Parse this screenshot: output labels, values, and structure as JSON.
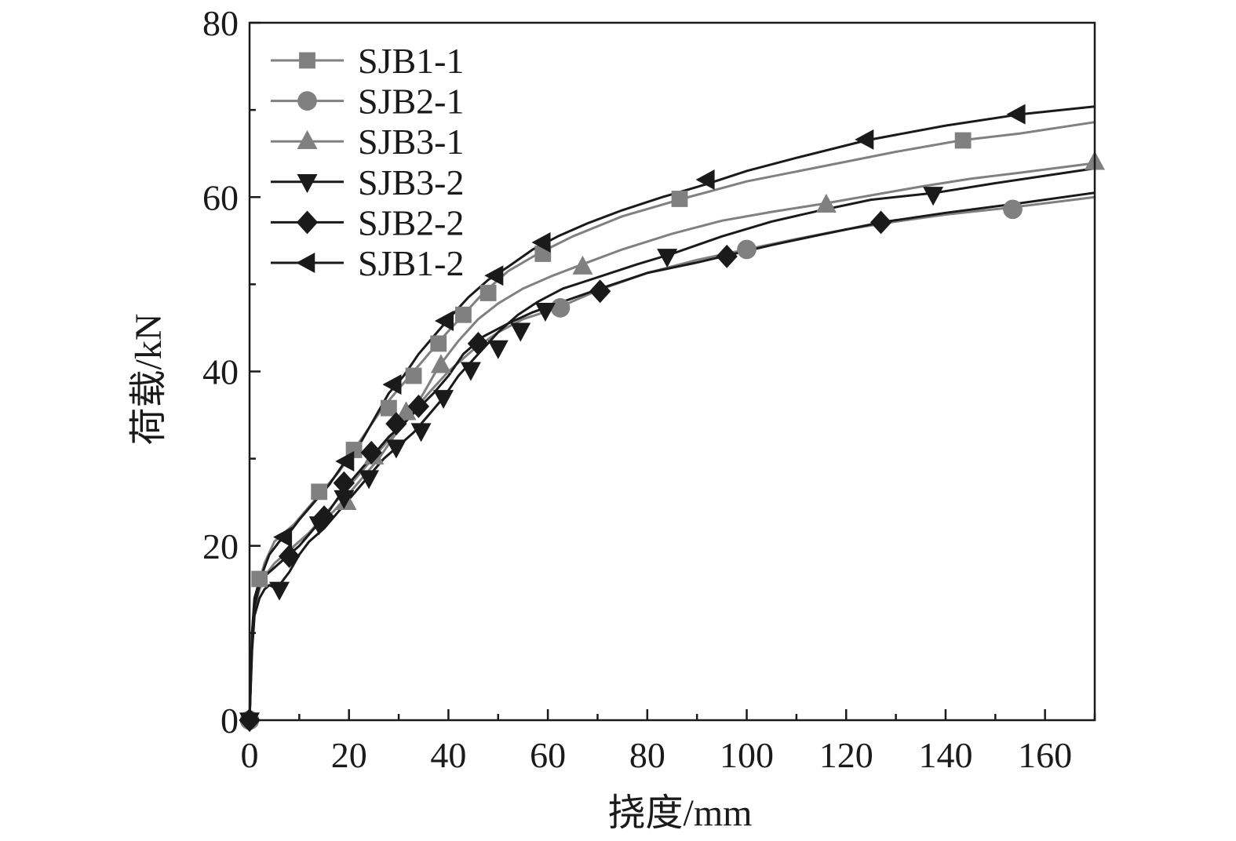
{
  "chart_data": {
    "type": "line",
    "title": "",
    "xlabel": "挠度/mm",
    "ylabel": "荷载/kN",
    "xlim": [
      0,
      170
    ],
    "ylim": [
      0,
      80
    ],
    "xticks": [
      0,
      20,
      40,
      60,
      80,
      100,
      120,
      140,
      160
    ],
    "yticks": [
      0,
      20,
      40,
      60,
      80
    ],
    "grid": false,
    "legend": "top-left",
    "series": [
      {
        "name": "SJB1-1",
        "color": "#808080",
        "marker": "square",
        "x": [
          0,
          0.5,
          1,
          2,
          3,
          5,
          7,
          9,
          12,
          15,
          18,
          21,
          24,
          27,
          30,
          33,
          36,
          39,
          43,
          47,
          52,
          58,
          65,
          75,
          87,
          100,
          115,
          130,
          143,
          155,
          170
        ],
        "y": [
          0,
          10,
          14,
          16,
          18,
          20.5,
          21.5,
          22.5,
          24.5,
          26.5,
          28.5,
          31,
          33.5,
          36,
          38,
          40,
          42,
          44,
          46.5,
          49,
          51.5,
          53.5,
          55.5,
          57.8,
          59.8,
          61.8,
          63.5,
          65.2,
          66.5,
          67.3,
          68.6
        ],
        "marker_x": [
          2,
          14,
          21,
          28,
          33,
          38,
          43,
          48,
          59,
          86.5,
          143.5
        ],
        "marker_y": [
          16.2,
          26.2,
          31,
          35.8,
          39.5,
          43.2,
          46.5,
          49,
          53.5,
          59.8,
          66.5
        ]
      },
      {
        "name": "SJB2-1",
        "color": "#808080",
        "marker": "circle",
        "x": [
          0,
          0.5,
          1,
          2,
          3,
          5,
          7,
          9,
          12,
          15,
          18,
          21,
          24,
          27,
          30,
          33,
          36,
          40,
          45,
          50,
          55,
          62,
          70,
          80,
          90,
          100,
          110,
          120,
          130,
          140,
          153,
          170
        ],
        "y": [
          0,
          9,
          13,
          15,
          16.5,
          17.5,
          18.5,
          20,
          21.5,
          23.5,
          25.5,
          27.5,
          29.5,
          31.5,
          33.5,
          35.5,
          37.5,
          40,
          42.5,
          44.5,
          46,
          47.3,
          49.3,
          51.3,
          52.8,
          54,
          55.2,
          56.3,
          57.2,
          58,
          58.8,
          60
        ],
        "marker_x": [
          0,
          62.5,
          100,
          153.5
        ],
        "marker_y": [
          0,
          47.3,
          54,
          58.6
        ]
      },
      {
        "name": "SJB3-1",
        "color": "#808080",
        "marker": "triangle-up",
        "x": [
          0,
          0.5,
          1,
          2,
          3,
          5,
          8,
          11,
          14,
          17,
          20,
          23,
          26,
          29,
          32,
          35,
          38,
          42,
          46,
          50,
          55,
          61,
          67,
          75,
          85,
          95,
          105,
          115,
          125,
          135,
          145,
          155,
          170
        ],
        "y": [
          0,
          9,
          13,
          15,
          16.5,
          18,
          19.5,
          21,
          22.5,
          24,
          26,
          28,
          30,
          32.5,
          35,
          37.5,
          40.5,
          43.5,
          46,
          47.8,
          49.5,
          51,
          52.3,
          54,
          55.8,
          57.3,
          58.3,
          59.2,
          60.2,
          61.2,
          62.1,
          62.8,
          63.9
        ],
        "marker_x": [
          19.5,
          25,
          31.5,
          38.5,
          67,
          116,
          170
        ],
        "marker_y": [
          25,
          30.2,
          35.3,
          40.7,
          52,
          59.1,
          64
        ]
      },
      {
        "name": "SJB3-2",
        "color": "#1a1a1a",
        "marker": "triangle-down",
        "x": [
          0,
          0.5,
          1,
          2,
          3,
          4,
          5,
          6,
          8,
          10,
          12,
          15,
          18,
          21,
          24,
          27,
          30,
          33,
          36,
          39,
          42,
          46,
          50,
          54,
          58,
          63,
          70,
          78,
          85,
          95,
          105,
          115,
          125,
          138,
          150,
          170
        ],
        "y": [
          0,
          8,
          12,
          14,
          15,
          15.5,
          15.2,
          15.5,
          17,
          19,
          20.5,
          22,
          24,
          26,
          28,
          30,
          31.5,
          33,
          35,
          37,
          39.5,
          42,
          44.5,
          46.5,
          48,
          49.5,
          50.8,
          52.3,
          53.5,
          55.5,
          57.2,
          58.5,
          59.7,
          60.5,
          61.6,
          63.3
        ],
        "marker_x": [
          0,
          6,
          14,
          19,
          24,
          29.5,
          34.5,
          39,
          44.5,
          50,
          54.5,
          59.5,
          84,
          137.5
        ],
        "marker_y": [
          0,
          15,
          22.5,
          25.5,
          27.8,
          31.3,
          33.2,
          37,
          40.2,
          42.7,
          44.7,
          47,
          53.2,
          60.3
        ]
      },
      {
        "name": "SJB2-2",
        "color": "#1a1a1a",
        "marker": "diamond",
        "x": [
          0,
          0.5,
          1,
          2,
          3,
          5,
          7,
          10,
          13,
          16,
          19,
          22,
          25,
          28,
          31,
          34,
          37,
          40,
          43,
          47,
          52,
          57,
          63,
          70,
          80,
          90,
          96,
          105,
          115,
          127,
          140,
          155,
          170
        ],
        "y": [
          0,
          9,
          13,
          15.5,
          16.5,
          17.5,
          18.5,
          20,
          22,
          24,
          26.5,
          28.5,
          30.5,
          32.5,
          34,
          35.8,
          37.5,
          39.5,
          42,
          44,
          45.5,
          46.8,
          48,
          49.4,
          51.3,
          52.5,
          53.3,
          54.5,
          55.7,
          57.1,
          58.2,
          59.3,
          60.5
        ],
        "marker_x": [
          0,
          8,
          15,
          19,
          24.5,
          29.5,
          34,
          46,
          70.5,
          96,
          127
        ],
        "marker_y": [
          0,
          18.8,
          23.3,
          27.2,
          30.7,
          34,
          36,
          43.2,
          49.2,
          53.2,
          57.1
        ]
      },
      {
        "name": "SJB1-2",
        "color": "#1a1a1a",
        "marker": "triangle-left",
        "x": [
          0,
          0.5,
          1,
          2,
          3,
          4,
          6,
          8,
          10,
          13,
          16,
          19,
          22,
          25,
          28,
          31,
          34,
          37,
          40,
          44,
          48,
          52,
          57,
          62,
          68,
          75,
          83,
          92,
          100,
          110,
          124,
          140,
          155,
          170
        ],
        "y": [
          0,
          10,
          14,
          16,
          17.5,
          19,
          20.5,
          21.5,
          23,
          25,
          27,
          29.5,
          31.5,
          34.5,
          37.5,
          39.5,
          42,
          44,
          46,
          48.5,
          50.5,
          52,
          54,
          55.5,
          57,
          58.5,
          60,
          61.5,
          63,
          64.5,
          66.5,
          68.2,
          69.5,
          70.4
        ],
        "marker_x": [
          7,
          19.5,
          29,
          39.5,
          49.5,
          59,
          92,
          124,
          154.5
        ],
        "marker_y": [
          21,
          29.7,
          38.5,
          45.8,
          51,
          54.8,
          62,
          66.6,
          69.5
        ]
      }
    ]
  }
}
